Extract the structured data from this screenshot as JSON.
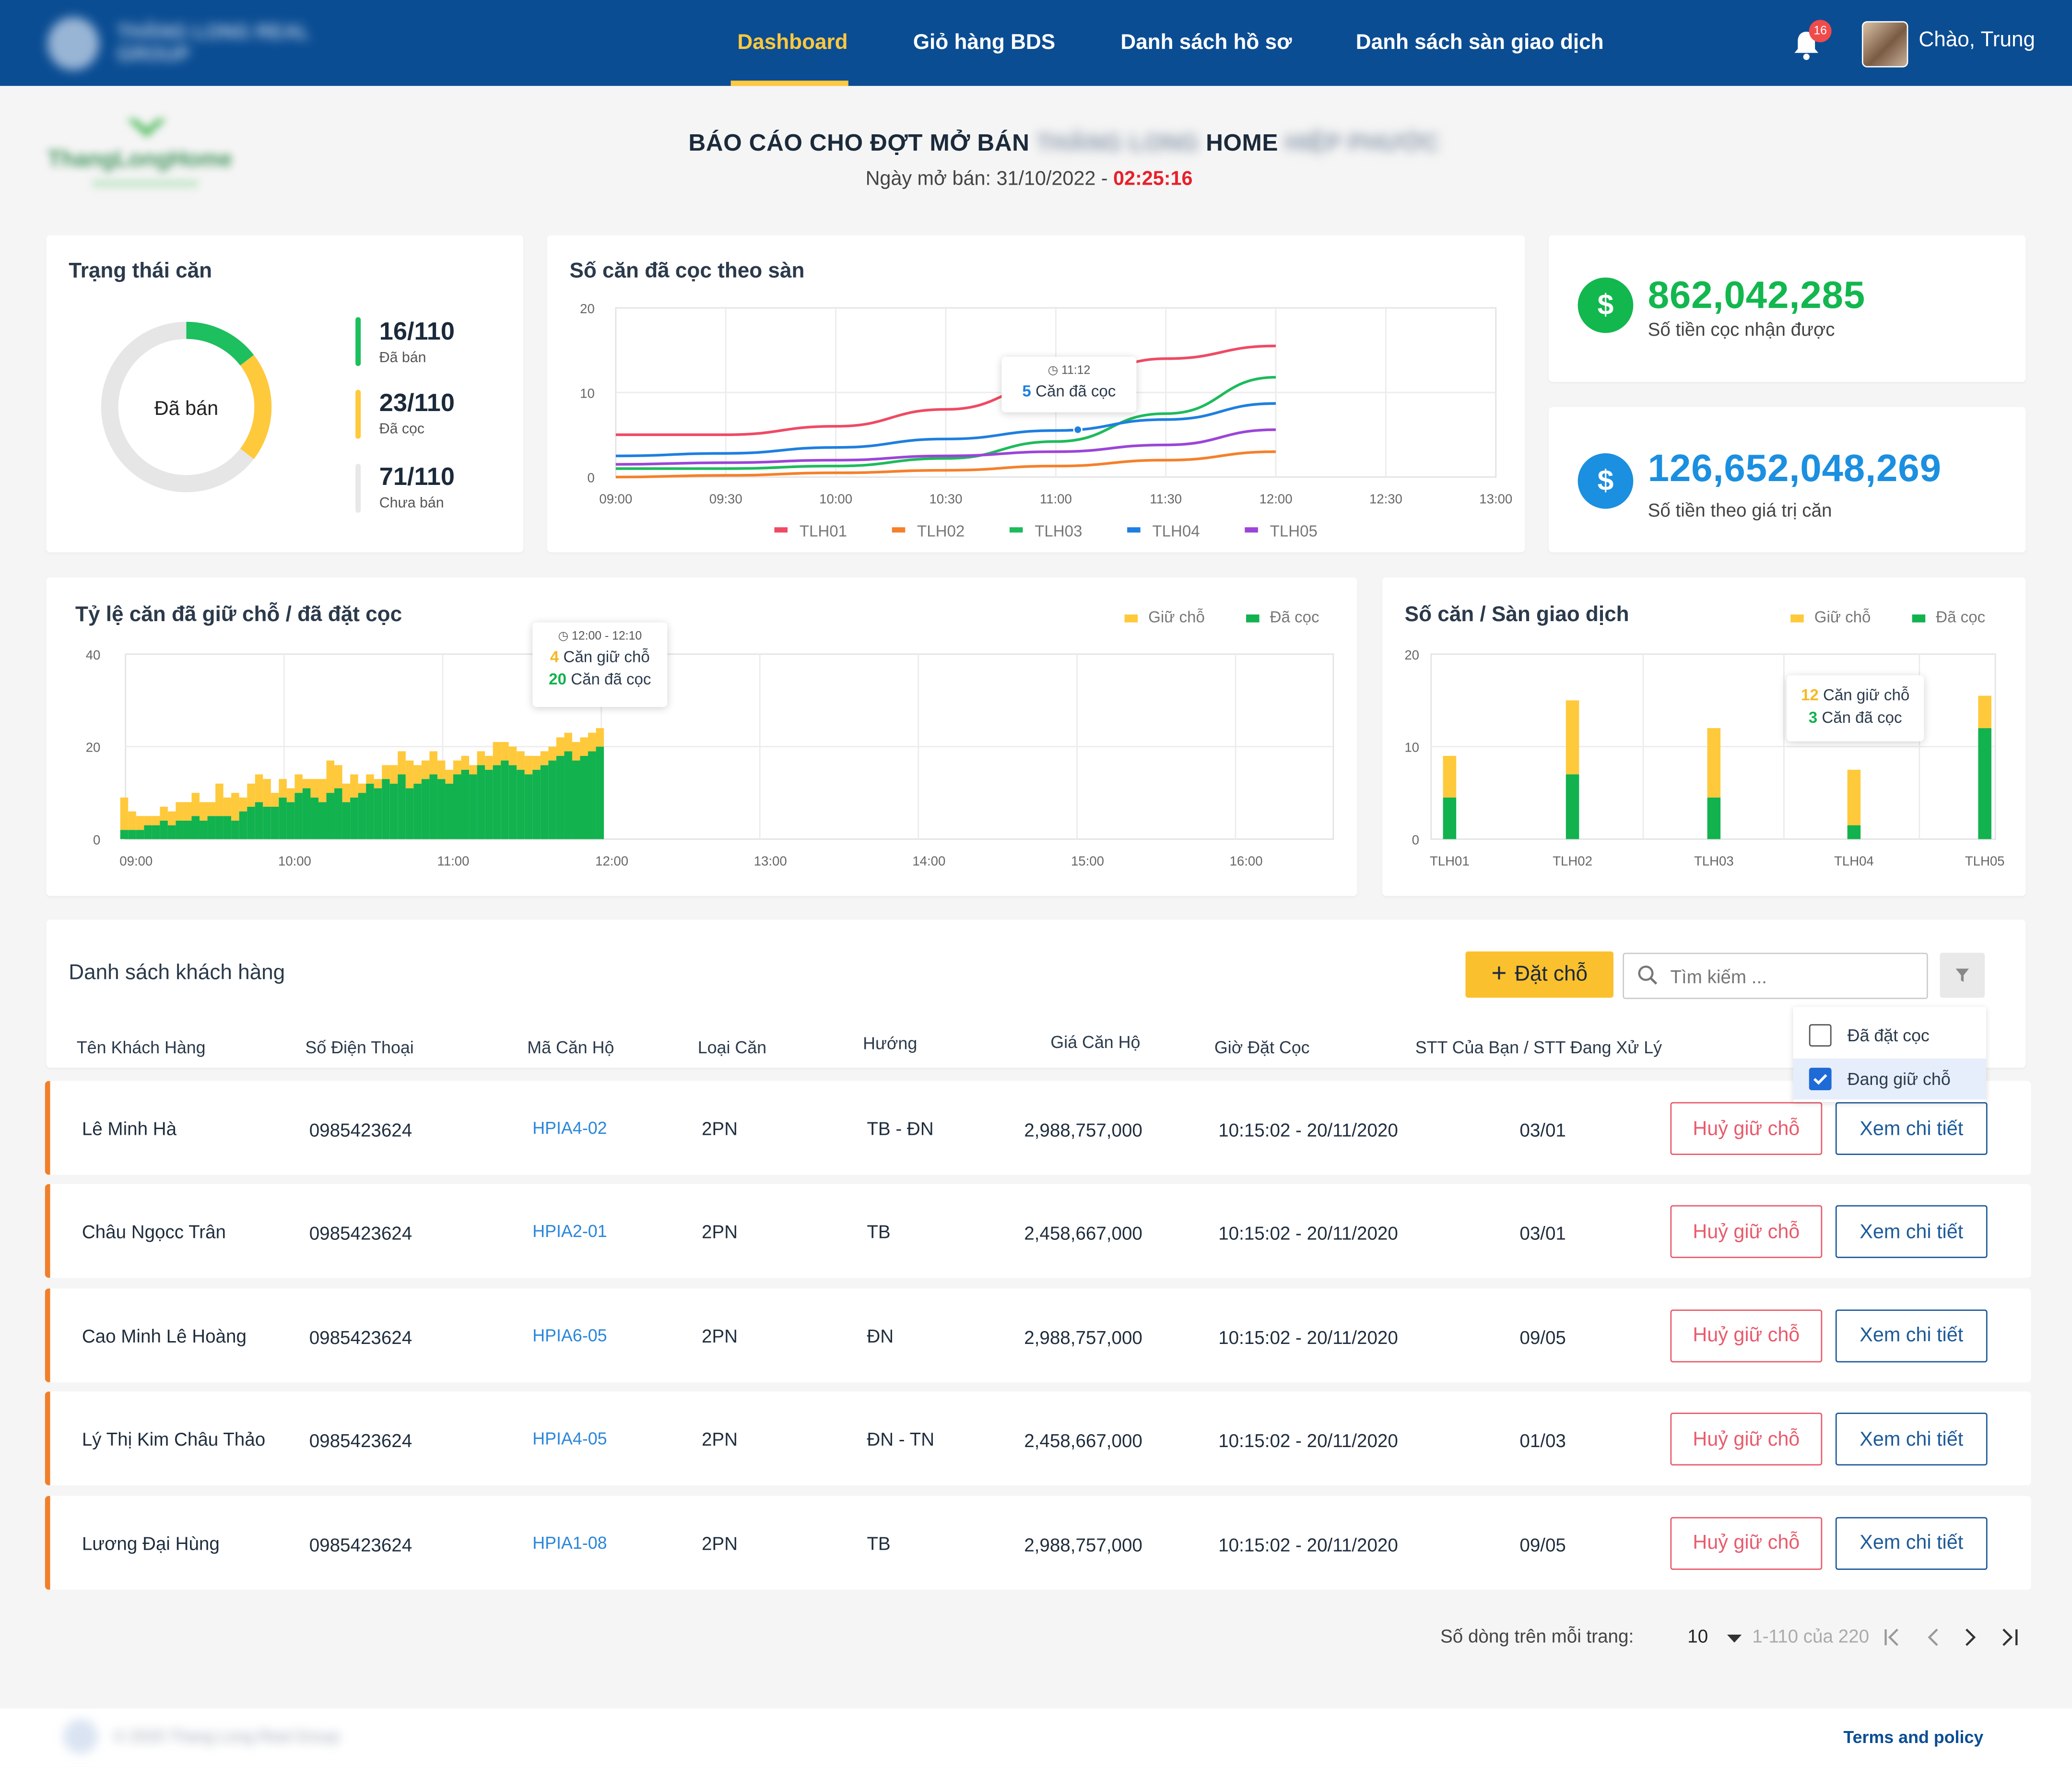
{
  "header": {
    "brand": "THĂNG LONG REAL GROUP",
    "nav": [
      "Dashboard",
      "Giỏ hàng BDS",
      "Danh sách hồ sơ",
      "Danh sách sàn giao dịch"
    ],
    "notification_count": "16",
    "greeting": "Chào, Trung"
  },
  "report": {
    "logo_text": "ThangLongHome",
    "title_prefix": "BÁO CÁO CHO ĐỢT MỞ BÁN",
    "title_blur1": "THĂNG LONG",
    "title_mid": "HOME",
    "title_blur2": "HIỆP PHƯỚC",
    "date_label": "Ngày mở bán: 31/10/2022 -",
    "time": "02:25:16"
  },
  "status_card": {
    "title": "Trạng thái căn",
    "center_label": "Đã bán",
    "total": 110,
    "items": [
      {
        "value": "16/110",
        "label": "Đã bán",
        "count": 16,
        "color": "#1dbf5e"
      },
      {
        "value": "23/110",
        "label": "Đã cọc",
        "count": 23,
        "color": "#ffc93c"
      },
      {
        "value": "71/110",
        "label": "Chưa bán",
        "count": 71,
        "color": "#e6e6e6"
      }
    ]
  },
  "money": [
    {
      "amount": "862,042,285",
      "label": "Số tiền cọc nhận được",
      "color": "#12b74e",
      "icon": "dollar-icon"
    },
    {
      "amount": "126,652,048,269",
      "label": "Số tiền theo giá trị căn",
      "color": "#1b8fe0",
      "icon": "dollar-icon"
    }
  ],
  "line_chart_card": {
    "title": "Số căn đã cọc theo sàn",
    "tooltip_time": "11:12",
    "tooltip_value": "5",
    "tooltip_text": "Căn đã cọc"
  },
  "ratio_card": {
    "title": "Tỷ lệ căn đã giữ chỗ / đã đặt cọc",
    "legend": [
      "Giữ chỗ",
      "Đã cọc"
    ],
    "tooltip_time": "12:00 - 12:10",
    "tooltip_hold": "4",
    "tooltip_hold_text": "Căn giữ chỗ",
    "tooltip_dep": "20",
    "tooltip_dep_text": "Căn đã cọc"
  },
  "exchange_card": {
    "title": "Số căn / Sàn giao dịch",
    "legend": [
      "Giữ chỗ",
      "Đã cọc"
    ],
    "tooltip_hold": "12",
    "tooltip_hold_text": "Căn giữ chỗ",
    "tooltip_dep": "3",
    "tooltip_dep_text": "Căn đã cọc"
  },
  "chart_data": [
    {
      "type": "line",
      "title": "Số căn đã cọc theo sàn",
      "x": [
        "09:00",
        "09:30",
        "10:00",
        "10:30",
        "11:00",
        "11:30",
        "12:00",
        "12:30",
        "13:00"
      ],
      "ylim": [
        0,
        20
      ],
      "yticks": [
        0,
        10,
        20
      ],
      "grid": true,
      "legend_position": "bottom",
      "series": [
        {
          "name": "TLH01",
          "color": "#ef4a64",
          "values": [
            5,
            5,
            6,
            8,
            11,
            14,
            15.5,
            null,
            null
          ]
        },
        {
          "name": "TLH02",
          "color": "#f5802a",
          "values": [
            0,
            0.2,
            0.5,
            0.8,
            1.3,
            2,
            3,
            null,
            null
          ]
        },
        {
          "name": "TLH03",
          "color": "#1dbb5b",
          "values": [
            1,
            1,
            1.3,
            2.2,
            4.2,
            7.5,
            11.8,
            null,
            null
          ]
        },
        {
          "name": "TLH04",
          "color": "#1e7fe0",
          "values": [
            2.5,
            2.8,
            3.5,
            4.5,
            5.5,
            6.8,
            8.7,
            null,
            null
          ]
        },
        {
          "name": "TLH05",
          "color": "#9b45d8",
          "values": [
            1.5,
            1.7,
            2,
            2.5,
            3,
            3.8,
            5.6,
            null,
            null
          ]
        }
      ]
    },
    {
      "type": "bar",
      "title": "Tỷ lệ căn đã giữ chỗ / đã đặt cọc",
      "stacked": true,
      "x_ticks": [
        "09:00",
        "10:00",
        "11:00",
        "12:00",
        "13:00",
        "14:00",
        "15:00",
        "16:00"
      ],
      "ylim": [
        0,
        40
      ],
      "yticks": [
        0,
        20,
        40
      ],
      "legend_position": "top-right",
      "series": [
        {
          "name": "Giữ chỗ",
          "color": "#ffc93c",
          "values": [
            7,
            4,
            3,
            2,
            2,
            3,
            3,
            4,
            4,
            5,
            4,
            3,
            7,
            4,
            6,
            3,
            5,
            6,
            6,
            3,
            4,
            3,
            4,
            2,
            4,
            5,
            7,
            5,
            4,
            5,
            2,
            2,
            2,
            3,
            4,
            5,
            6,
            4,
            4,
            5,
            4,
            3,
            3,
            3,
            2,
            3,
            3,
            5,
            4,
            4,
            4,
            4,
            3,
            3,
            3,
            4,
            4,
            4,
            4,
            4,
            4
          ]
        },
        {
          "name": "Đã cọc",
          "color": "#12b24f",
          "values": [
            2,
            2,
            2,
            3,
            3,
            4,
            3,
            4,
            4,
            5,
            4,
            5,
            5,
            5,
            4,
            6,
            7,
            8,
            7,
            7,
            9,
            8,
            10,
            11,
            9,
            8,
            10,
            11,
            8,
            9,
            10,
            12,
            11,
            13,
            12,
            14,
            11,
            12,
            13,
            14,
            13,
            12,
            14,
            15,
            14,
            16,
            15,
            16,
            17,
            16,
            15,
            14,
            15,
            16,
            17,
            18,
            19,
            17,
            18,
            19,
            20
          ]
        }
      ]
    },
    {
      "type": "bar",
      "title": "Số căn / Sàn giao dịch",
      "stacked": true,
      "categories": [
        "TLH01",
        "TLH02",
        "TLH03",
        "TLH04",
        "TLH05"
      ],
      "ylim": [
        0,
        20
      ],
      "yticks": [
        0,
        10,
        20
      ],
      "legend_position": "top-right",
      "series": [
        {
          "name": "Giữ chỗ",
          "color": "#ffc93c",
          "values": [
            4.5,
            8,
            7.5,
            6,
            3.5
          ]
        },
        {
          "name": "Đã cọc",
          "color": "#12b24f",
          "values": [
            4.5,
            7,
            4.5,
            1.5,
            12
          ]
        }
      ]
    }
  ],
  "customers": {
    "title": "Danh sách khách hàng",
    "add_button": "Đặt chỗ",
    "search_placeholder": "Tìm kiếm ...",
    "filter_options": [
      {
        "label": "Đã đặt cọc",
        "checked": false
      },
      {
        "label": "Đang giữ chỗ",
        "checked": true
      }
    ],
    "columns": [
      "Tên Khách Hàng",
      "Số Điện Thoại",
      "Mã Căn Hộ",
      "Loại Căn",
      "Hướng",
      "Giá Căn Hộ",
      "Giờ Đặt Cọc",
      "STT Của Bạn / STT Đang Xử Lý"
    ],
    "cancel_label": "Huỷ giữ chỗ",
    "view_label": "Xem chi tiết",
    "rows": [
      {
        "name": "Lê Minh Hà",
        "phone": "0985423624",
        "code": "HPIA4-02",
        "type": "2PN",
        "direction": "TB -  ĐN",
        "price": "2,988,757,000",
        "time": "10:15:02 - 20/11/2020",
        "order": "03/01"
      },
      {
        "name": "Châu Ngọcc Trân",
        "phone": "0985423624",
        "code": "HPIA2-01",
        "type": "2PN",
        "direction": "TB",
        "price": "2,458,667,000",
        "time": "10:15:02 - 20/11/2020",
        "order": "03/01"
      },
      {
        "name": "Cao Minh Lê Hoàng",
        "phone": "0985423624",
        "code": "HPIA6-05",
        "type": "2PN",
        "direction": "ĐN",
        "price": "2,988,757,000",
        "time": "10:15:02 - 20/11/2020",
        "order": "09/05"
      },
      {
        "name": "Lý Thị Kim Châu Thảo",
        "phone": "0985423624",
        "code": "HPIA4-05",
        "type": "2PN",
        "direction": "ĐN - TN",
        "price": "2,458,667,000",
        "time": "10:15:02 - 20/11/2020",
        "order": "01/03"
      },
      {
        "name": "Lương Đại Hùng",
        "phone": "0985423624",
        "code": "HPIA1-08",
        "type": "2PN",
        "direction": "TB",
        "price": "2,988,757,000",
        "time": "10:15:02 - 20/11/2020",
        "order": "09/05"
      }
    ]
  },
  "pagination": {
    "rows_label": "Số dòng trên mỗi trang:",
    "rows_value": "10",
    "range": "1-110 của 220"
  },
  "footer": {
    "copyright": "© 2020 Thang Long Real Group",
    "terms": "Terms and policy"
  }
}
